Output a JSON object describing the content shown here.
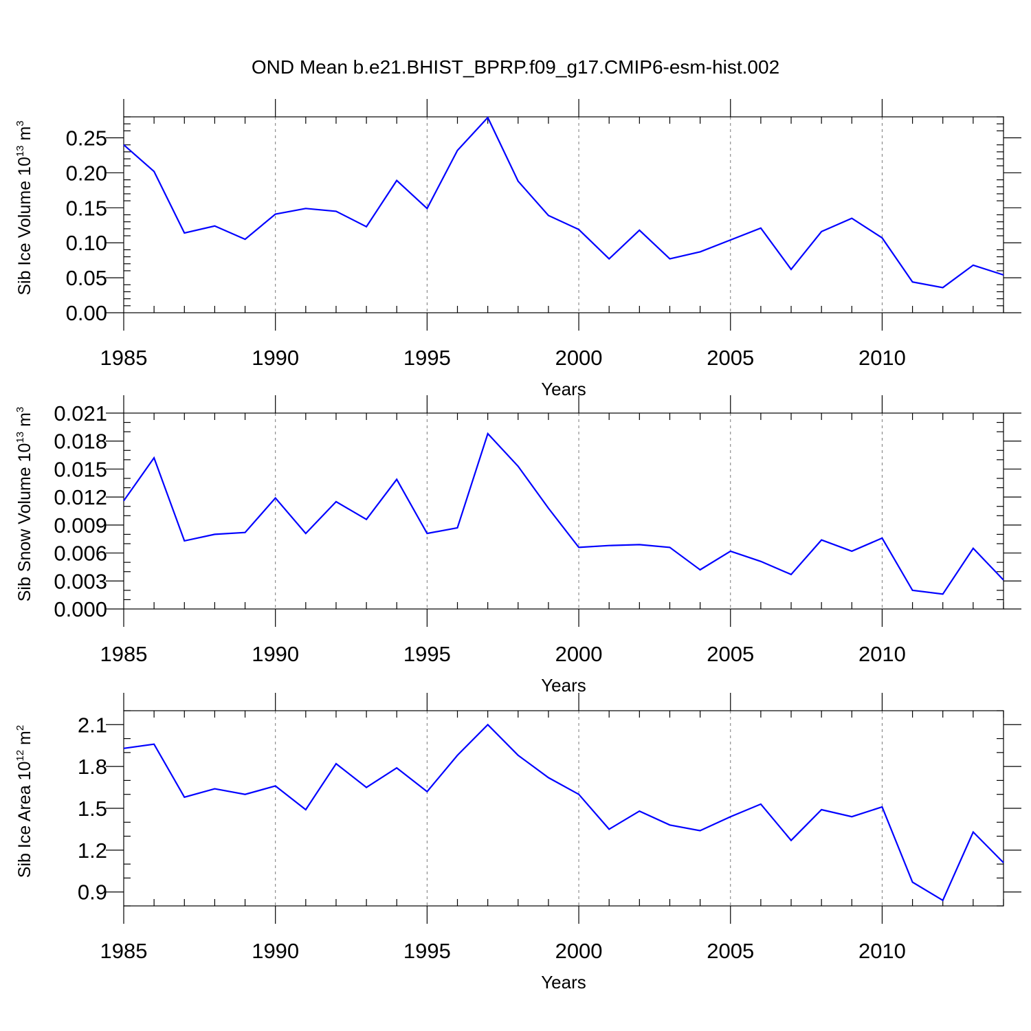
{
  "title": "OND Mean b.e21.BHIST_BPRP.f09_g17.CMIP6-esm-hist.002",
  "chart_data": [
    {
      "type": "line",
      "name": "sib-ice-volume",
      "ylabel": "Sib Ice Volume 10",
      "ylabel_exp": "13",
      "ylabel_unit": " m",
      "ylabel_unit_exp": "3",
      "xlabel": "Years",
      "xlim": [
        1985,
        2014
      ],
      "ylim": [
        0,
        0.28
      ],
      "yticks": [
        0.0,
        0.05,
        0.1,
        0.15,
        0.2,
        0.25
      ],
      "ytick_labels": [
        "0.00",
        "0.05",
        "0.10",
        "0.15",
        "0.20",
        "0.25"
      ],
      "xticks": [
        1985,
        1990,
        1995,
        2000,
        2005,
        2010
      ],
      "xtick_labels": [
        "1985",
        "1990",
        "1995",
        "2000",
        "2005",
        "2010"
      ],
      "x": [
        1985,
        1986,
        1987,
        1988,
        1989,
        1990,
        1991,
        1992,
        1993,
        1994,
        1995,
        1996,
        1997,
        1998,
        1999,
        2000,
        2001,
        2002,
        2003,
        2004,
        2005,
        2006,
        2007,
        2008,
        2009,
        2010,
        2011,
        2012,
        2013,
        2014
      ],
      "values": [
        0.24,
        0.202,
        0.114,
        0.124,
        0.105,
        0.141,
        0.149,
        0.145,
        0.123,
        0.189,
        0.149,
        0.232,
        0.279,
        0.188,
        0.139,
        0.119,
        0.077,
        0.118,
        0.077,
        0.087,
        0.104,
        0.121,
        0.062,
        0.116,
        0.135,
        0.107,
        0.044,
        0.036,
        0.068,
        0.054
      ],
      "color": "#0000ff"
    },
    {
      "type": "line",
      "name": "sib-snow-volume",
      "ylabel": "Sib Snow Volume 10",
      "ylabel_exp": "13",
      "ylabel_unit": " m",
      "ylabel_unit_exp": "3",
      "xlabel": "Years",
      "xlim": [
        1985,
        2014
      ],
      "ylim": [
        0,
        0.021
      ],
      "yticks": [
        0.0,
        0.003,
        0.006,
        0.009,
        0.012,
        0.015,
        0.018,
        0.021
      ],
      "ytick_labels": [
        "0.000",
        "0.003",
        "0.006",
        "0.009",
        "0.012",
        "0.015",
        "0.018",
        "0.021"
      ],
      "xticks": [
        1985,
        1990,
        1995,
        2000,
        2005,
        2010
      ],
      "xtick_labels": [
        "1985",
        "1990",
        "1995",
        "2000",
        "2005",
        "2010"
      ],
      "x": [
        1985,
        1986,
        1987,
        1988,
        1989,
        1990,
        1991,
        1992,
        1993,
        1994,
        1995,
        1996,
        1997,
        1998,
        1999,
        2000,
        2001,
        2002,
        2003,
        2004,
        2005,
        2006,
        2007,
        2008,
        2009,
        2010,
        2011,
        2012,
        2013,
        2014
      ],
      "values": [
        0.0116,
        0.0162,
        0.0073,
        0.008,
        0.0082,
        0.0119,
        0.0081,
        0.0115,
        0.0096,
        0.0139,
        0.0081,
        0.0087,
        0.0188,
        0.0153,
        0.0108,
        0.0066,
        0.0068,
        0.0069,
        0.0066,
        0.0042,
        0.0062,
        0.0051,
        0.0037,
        0.0074,
        0.0062,
        0.0076,
        0.002,
        0.0016,
        0.0065,
        0.0031
      ],
      "color": "#0000ff"
    },
    {
      "type": "line",
      "name": "sib-ice-area",
      "ylabel": "Sib Ice Area 10",
      "ylabel_exp": "12",
      "ylabel_unit": " m",
      "ylabel_unit_exp": "2",
      "xlabel": "Years",
      "xlim": [
        1985,
        2014
      ],
      "ylim": [
        0.8,
        2.2
      ],
      "yticks": [
        0.9,
        1.2,
        1.5,
        1.8,
        2.1
      ],
      "ytick_labels": [
        "0.9",
        "1.2",
        "1.5",
        "1.8",
        "2.1"
      ],
      "xticks": [
        1985,
        1990,
        1995,
        2000,
        2005,
        2010
      ],
      "xtick_labels": [
        "1985",
        "1990",
        "1995",
        "2000",
        "2005",
        "2010"
      ],
      "x": [
        1985,
        1986,
        1987,
        1988,
        1989,
        1990,
        1991,
        1992,
        1993,
        1994,
        1995,
        1996,
        1997,
        1998,
        1999,
        2000,
        2001,
        2002,
        2003,
        2004,
        2005,
        2006,
        2007,
        2008,
        2009,
        2010,
        2011,
        2012,
        2013,
        2014
      ],
      "values": [
        1.93,
        1.96,
        1.58,
        1.64,
        1.6,
        1.66,
        1.49,
        1.82,
        1.65,
        1.79,
        1.62,
        1.88,
        2.1,
        1.88,
        1.72,
        1.6,
        1.35,
        1.48,
        1.38,
        1.34,
        1.44,
        1.53,
        1.27,
        1.49,
        1.44,
        1.51,
        0.97,
        0.84,
        1.33,
        1.11
      ],
      "color": "#0000ff"
    }
  ]
}
